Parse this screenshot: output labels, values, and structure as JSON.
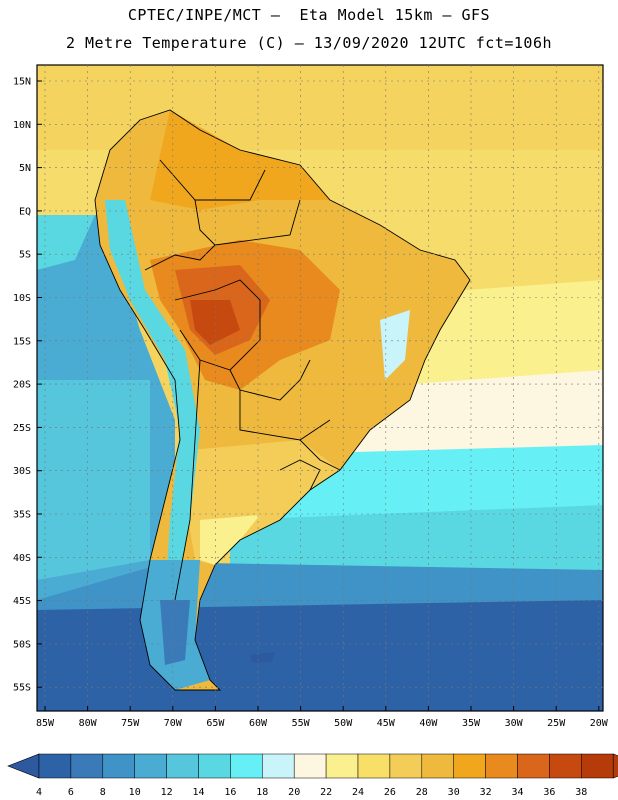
{
  "header": {
    "line1": "CPTEC/INPE/MCT –  Eta Model 15km – GFS",
    "line2": "2 Metre Temperature (C) – 13/09/2020 12UTC fct=106h"
  },
  "map": {
    "lat_labels": [
      "15N",
      "10N",
      "5N",
      "EQ",
      "5S",
      "10S",
      "15S",
      "20S",
      "25S",
      "30S",
      "35S",
      "40S",
      "45S",
      "50S",
      "55S"
    ],
    "lon_labels": [
      "85W",
      "80W",
      "75W",
      "70W",
      "65W",
      "60W",
      "55W",
      "50W",
      "45W",
      "40W",
      "35W",
      "30W",
      "25W",
      "20W"
    ]
  },
  "colorbar": {
    "labels": [
      "4",
      "6",
      "8",
      "10",
      "12",
      "14",
      "16",
      "18",
      "20",
      "22",
      "24",
      "26",
      "28",
      "30",
      "32",
      "34",
      "36",
      "38"
    ],
    "colors": [
      "#2d63a6",
      "#3a7ab9",
      "#3f93c6",
      "#4aabd3",
      "#55c6dc",
      "#5ad8e2",
      "#66f0f6",
      "#c8f4fa",
      "#fdf6e0",
      "#fbf08e",
      "#f8df68",
      "#f4cd58",
      "#eeb93c",
      "#f0a71e",
      "#e88a1d",
      "#d9661b",
      "#c64a10",
      "#b53b0a"
    ],
    "under_color": "#2d5a9e",
    "over_color": "#b53b0a"
  }
}
